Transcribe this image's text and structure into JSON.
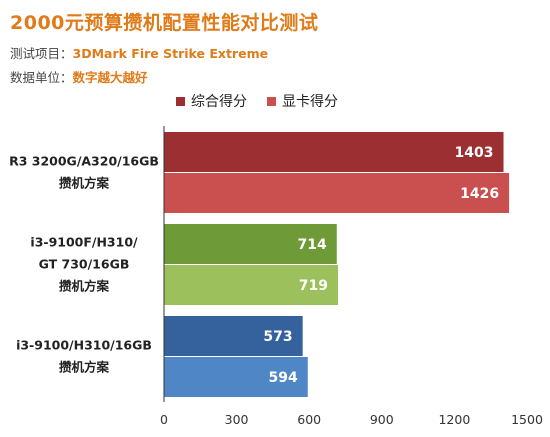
{
  "header": {
    "title": "2000元预算攒机配置性能对比测试",
    "test_item_label": "测试项目：",
    "test_item_value": "3DMark Fire Strike Extreme",
    "unit_label": "数据单位：",
    "unit_value": "数字越大越好"
  },
  "colors": {
    "accent": "#e07b1a",
    "series_total_legend": "#9b2f31",
    "series_gpu_legend": "#c9504f"
  },
  "chart_data": {
    "type": "bar",
    "orientation": "horizontal",
    "title": "2000元预算攒机配置性能对比测试",
    "categories": [
      [
        "R3 3200G/A320/16GB",
        "攒机方案"
      ],
      [
        "i3-9100F/H310/",
        "GT 730/16GB",
        "攒机方案"
      ],
      [
        "i3-9100/H310/16GB",
        "攒机方案"
      ]
    ],
    "series": [
      {
        "name": "综合得分",
        "values": [
          1403,
          714,
          573
        ]
      },
      {
        "name": "显卡得分",
        "values": [
          1426,
          719,
          594
        ]
      }
    ],
    "bar_colors": [
      [
        "#9b2f31",
        "#c9504f"
      ],
      [
        "#6f9a38",
        "#9cc05c"
      ],
      [
        "#35619c",
        "#4f86c6"
      ]
    ],
    "xlim": [
      0,
      1500
    ],
    "xticks": [
      0,
      300,
      600,
      900,
      1200,
      1500
    ],
    "grid": false,
    "legend_position": "top"
  }
}
